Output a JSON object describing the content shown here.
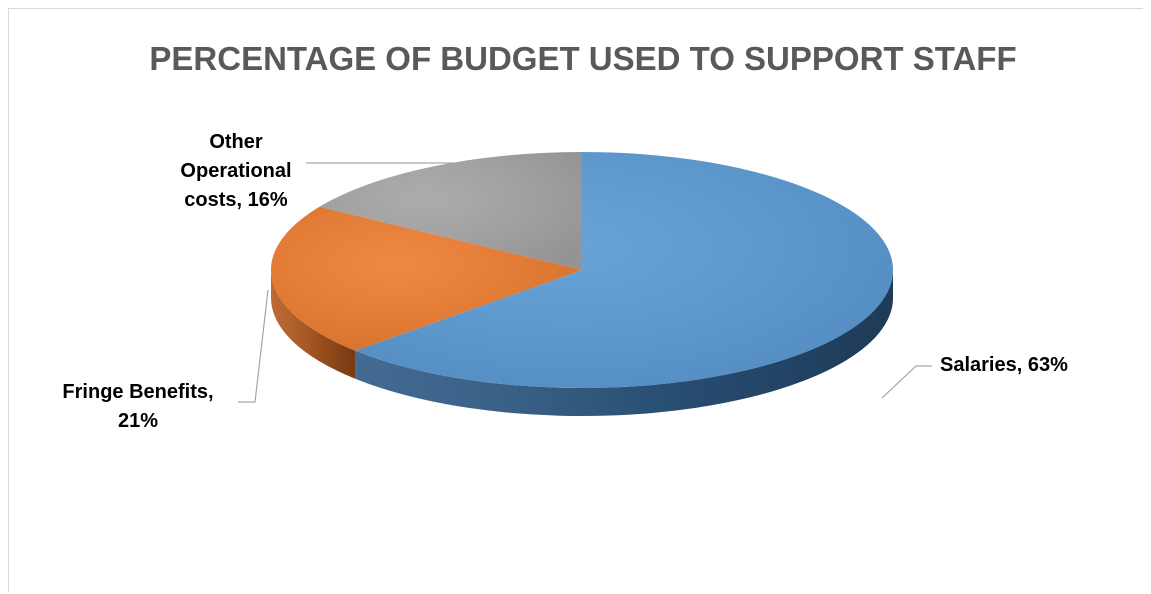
{
  "chart_data": {
    "type": "pie",
    "title": "PERCENTAGE OF BUDGET USED TO SUPPORT STAFF",
    "slices": [
      {
        "label": "Salaries",
        "value": 63,
        "value_text": "63%",
        "color": "#5B9BD5",
        "side_color": "#2E5A85",
        "label_lines": [
          "Salaries, 63%"
        ]
      },
      {
        "label": "Fringe Benefits",
        "value": 21,
        "value_text": "21%",
        "color": "#ED7D31",
        "side_color": "#B35A1E",
        "label_lines": [
          "Fringe Benefits,",
          "21%"
        ]
      },
      {
        "label": "Other Operational costs",
        "value": 16,
        "value_text": "16%",
        "color": "#A5A5A5",
        "side_color": "#7A7A7A",
        "label_lines": [
          "Other",
          "Operational",
          "costs, 16%"
        ]
      }
    ],
    "legend": "none",
    "style": "3d-pie"
  }
}
